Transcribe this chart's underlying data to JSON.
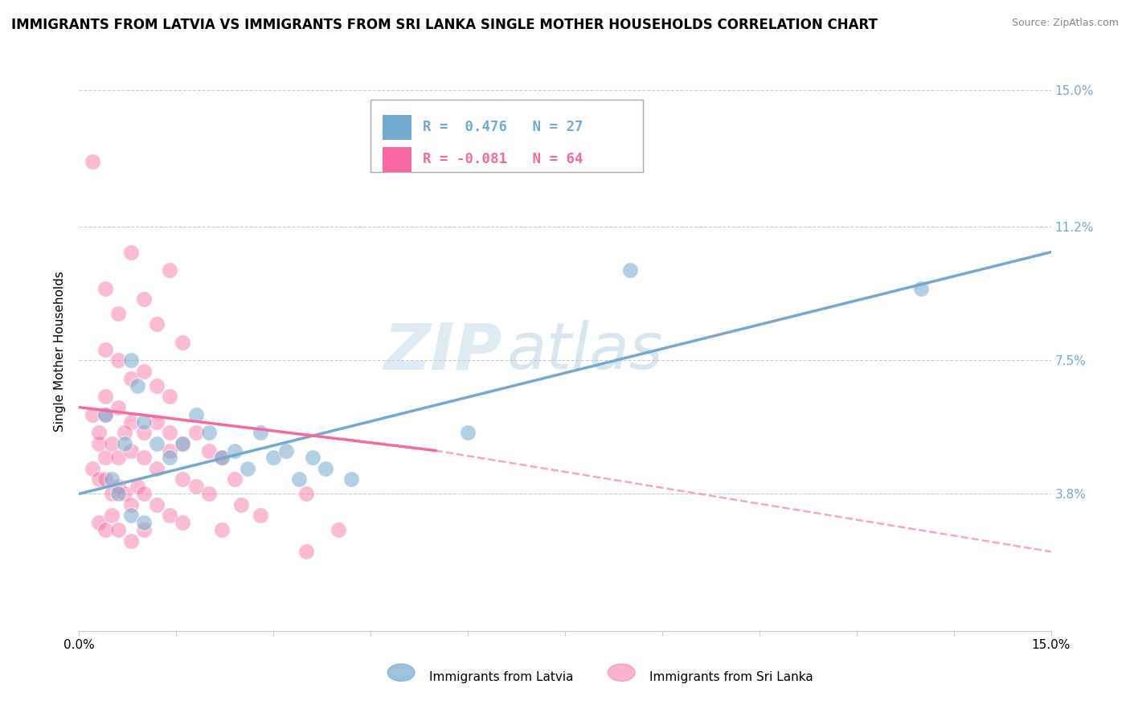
{
  "title": "IMMIGRANTS FROM LATVIA VS IMMIGRANTS FROM SRI LANKA SINGLE MOTHER HOUSEHOLDS CORRELATION CHART",
  "source": "Source: ZipAtlas.com",
  "ylabel": "Single Mother Households",
  "watermark": "ZIPatlas",
  "xlim": [
    0.0,
    0.15
  ],
  "ylim": [
    0.0,
    0.155
  ],
  "yticks": [
    0.038,
    0.075,
    0.112,
    0.15
  ],
  "ytick_labels": [
    "3.8%",
    "7.5%",
    "11.2%",
    "15.0%"
  ],
  "xticks": [
    0.0,
    0.015,
    0.03,
    0.045,
    0.06,
    0.075,
    0.09,
    0.105,
    0.12,
    0.135,
    0.15
  ],
  "xtick_labels_show": [
    "0.0%",
    "",
    "",
    "",
    "",
    "",
    "",
    "",
    "",
    "",
    "15.0%"
  ],
  "blue_color": "#74a9cf",
  "pink_color": "#f768a1",
  "blue_scatter": [
    [
      0.004,
      0.06
    ],
    [
      0.007,
      0.052
    ],
    [
      0.008,
      0.075
    ],
    [
      0.009,
      0.068
    ],
    [
      0.01,
      0.058
    ],
    [
      0.012,
      0.052
    ],
    [
      0.014,
      0.048
    ],
    [
      0.016,
      0.052
    ],
    [
      0.018,
      0.06
    ],
    [
      0.02,
      0.055
    ],
    [
      0.022,
      0.048
    ],
    [
      0.024,
      0.05
    ],
    [
      0.026,
      0.045
    ],
    [
      0.028,
      0.055
    ],
    [
      0.03,
      0.048
    ],
    [
      0.032,
      0.05
    ],
    [
      0.034,
      0.042
    ],
    [
      0.036,
      0.048
    ],
    [
      0.038,
      0.045
    ],
    [
      0.042,
      0.042
    ],
    [
      0.005,
      0.042
    ],
    [
      0.006,
      0.038
    ],
    [
      0.008,
      0.032
    ],
    [
      0.01,
      0.03
    ],
    [
      0.085,
      0.1
    ],
    [
      0.13,
      0.095
    ],
    [
      0.06,
      0.055
    ]
  ],
  "pink_scatter": [
    [
      0.002,
      0.13
    ],
    [
      0.004,
      0.095
    ],
    [
      0.006,
      0.088
    ],
    [
      0.008,
      0.105
    ],
    [
      0.01,
      0.092
    ],
    [
      0.012,
      0.085
    ],
    [
      0.014,
      0.1
    ],
    [
      0.016,
      0.08
    ],
    [
      0.004,
      0.078
    ],
    [
      0.006,
      0.075
    ],
    [
      0.008,
      0.07
    ],
    [
      0.01,
      0.072
    ],
    [
      0.012,
      0.068
    ],
    [
      0.014,
      0.065
    ],
    [
      0.004,
      0.06
    ],
    [
      0.006,
      0.062
    ],
    [
      0.008,
      0.058
    ],
    [
      0.01,
      0.055
    ],
    [
      0.012,
      0.058
    ],
    [
      0.014,
      0.055
    ],
    [
      0.016,
      0.052
    ],
    [
      0.018,
      0.055
    ],
    [
      0.02,
      0.05
    ],
    [
      0.003,
      0.052
    ],
    [
      0.004,
      0.048
    ],
    [
      0.005,
      0.052
    ],
    [
      0.006,
      0.048
    ],
    [
      0.007,
      0.055
    ],
    [
      0.008,
      0.05
    ],
    [
      0.01,
      0.048
    ],
    [
      0.012,
      0.045
    ],
    [
      0.014,
      0.05
    ],
    [
      0.002,
      0.045
    ],
    [
      0.003,
      0.042
    ],
    [
      0.004,
      0.042
    ],
    [
      0.005,
      0.038
    ],
    [
      0.006,
      0.04
    ],
    [
      0.007,
      0.038
    ],
    [
      0.008,
      0.035
    ],
    [
      0.009,
      0.04
    ],
    [
      0.01,
      0.038
    ],
    [
      0.012,
      0.035
    ],
    [
      0.014,
      0.032
    ],
    [
      0.016,
      0.03
    ],
    [
      0.003,
      0.03
    ],
    [
      0.004,
      0.028
    ],
    [
      0.005,
      0.032
    ],
    [
      0.006,
      0.028
    ],
    [
      0.008,
      0.025
    ],
    [
      0.01,
      0.028
    ],
    [
      0.002,
      0.06
    ],
    [
      0.003,
      0.055
    ],
    [
      0.004,
      0.065
    ],
    [
      0.018,
      0.04
    ],
    [
      0.02,
      0.038
    ],
    [
      0.025,
      0.035
    ],
    [
      0.016,
      0.042
    ],
    [
      0.022,
      0.048
    ],
    [
      0.024,
      0.042
    ],
    [
      0.035,
      0.038
    ],
    [
      0.04,
      0.028
    ],
    [
      0.035,
      0.022
    ],
    [
      0.022,
      0.028
    ],
    [
      0.028,
      0.032
    ]
  ],
  "blue_line": {
    "x0": 0.0,
    "y0": 0.038,
    "x1": 0.15,
    "y1": 0.105
  },
  "pink_line_solid": {
    "x0": 0.0,
    "y0": 0.062,
    "x1": 0.055,
    "y1": 0.05
  },
  "pink_line_dashed": {
    "x0": 0.055,
    "y0": 0.05,
    "x1": 0.15,
    "y1": 0.022
  },
  "legend_blue_text": "R =  0.476   N = 27",
  "legend_pink_text": "R = -0.081   N = 64",
  "title_fontsize": 12,
  "label_fontsize": 11,
  "tick_fontsize": 11,
  "legend_fontsize": 12.5
}
